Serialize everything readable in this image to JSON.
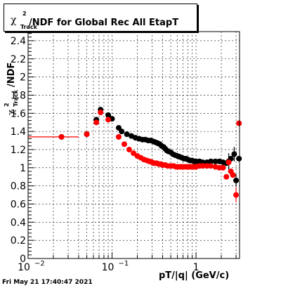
{
  "chart_data": {
    "type": "scatter",
    "title": "/NDF for Global Rec All EtapT",
    "title_prefix": "χ",
    "title_sup": "2",
    "title_sub": "Track",
    "xlabel": "pT/|q| (GeV/c)",
    "ylabel": "χ2Track/NDF",
    "xscale": "log",
    "xlim": [
      0.01,
      3.3
    ],
    "ylim": [
      0,
      2.5
    ],
    "yticks": [
      "0",
      "0.2",
      "0.4",
      "0.6",
      "0.8",
      "1",
      "1.2",
      "1.4",
      "1.6",
      "1.8",
      "2",
      "2.2",
      "2.4"
    ],
    "xticks": [
      {
        "value": 0.01,
        "base": "10",
        "exp": "−2"
      },
      {
        "value": 0.1,
        "base": "10",
        "exp": "−1"
      },
      {
        "value": 1,
        "base": "1",
        "exp": ""
      }
    ],
    "grid": true,
    "series": [
      {
        "color": "#000000",
        "points": [
          [
            0.025,
            1.34
          ],
          [
            0.05,
            1.37
          ],
          [
            0.065,
            1.53
          ],
          [
            0.073,
            1.64
          ],
          [
            0.09,
            1.58
          ],
          [
            0.1,
            1.54
          ],
          [
            0.12,
            1.44
          ],
          [
            0.13,
            1.4
          ],
          [
            0.15,
            1.37
          ],
          [
            0.17,
            1.35
          ],
          [
            0.19,
            1.33
          ],
          [
            0.21,
            1.32
          ],
          [
            0.23,
            1.31
          ],
          [
            0.25,
            1.31
          ],
          [
            0.27,
            1.3
          ],
          [
            0.29,
            1.3
          ],
          [
            0.31,
            1.29
          ],
          [
            0.33,
            1.28
          ],
          [
            0.35,
            1.27
          ],
          [
            0.37,
            1.26
          ],
          [
            0.39,
            1.24
          ],
          [
            0.41,
            1.23
          ],
          [
            0.43,
            1.21
          ],
          [
            0.45,
            1.19
          ],
          [
            0.47,
            1.18
          ],
          [
            0.5,
            1.17
          ],
          [
            0.53,
            1.15
          ],
          [
            0.56,
            1.14
          ],
          [
            0.6,
            1.13
          ],
          [
            0.64,
            1.12
          ],
          [
            0.68,
            1.11
          ],
          [
            0.72,
            1.1
          ],
          [
            0.76,
            1.1
          ],
          [
            0.8,
            1.09
          ],
          [
            0.85,
            1.08
          ],
          [
            0.9,
            1.08
          ],
          [
            0.95,
            1.07
          ],
          [
            1.0,
            1.07
          ],
          [
            1.1,
            1.07
          ],
          [
            1.2,
            1.06
          ],
          [
            1.35,
            1.06
          ],
          [
            1.5,
            1.07
          ],
          [
            1.7,
            1.07
          ],
          [
            1.9,
            1.07
          ],
          [
            2.1,
            1.06
          ],
          [
            2.3,
            1.05
          ],
          [
            2.45,
            1.07
          ],
          [
            2.6,
            1.1
          ],
          [
            2.85,
            1.15
          ],
          [
            3.0,
            0.86
          ],
          [
            3.25,
            1.1
          ]
        ]
      },
      {
        "color": "#ff0000",
        "points": [
          [
            0.025,
            1.34
          ],
          [
            0.05,
            1.37
          ],
          [
            0.065,
            1.5
          ],
          [
            0.073,
            1.61
          ],
          [
            0.09,
            1.53
          ],
          [
            0.12,
            1.34
          ],
          [
            0.14,
            1.26
          ],
          [
            0.16,
            1.2
          ],
          [
            0.18,
            1.16
          ],
          [
            0.2,
            1.13
          ],
          [
            0.22,
            1.11
          ],
          [
            0.24,
            1.09
          ],
          [
            0.26,
            1.08
          ],
          [
            0.28,
            1.07
          ],
          [
            0.3,
            1.06
          ],
          [
            0.32,
            1.05
          ],
          [
            0.34,
            1.05
          ],
          [
            0.36,
            1.04
          ],
          [
            0.38,
            1.04
          ],
          [
            0.4,
            1.03
          ],
          [
            0.43,
            1.03
          ],
          [
            0.46,
            1.02
          ],
          [
            0.5,
            1.02
          ],
          [
            0.54,
            1.02
          ],
          [
            0.58,
            1.01
          ],
          [
            0.62,
            1.01
          ],
          [
            0.66,
            1.01
          ],
          [
            0.7,
            1.01
          ],
          [
            0.75,
            1.01
          ],
          [
            0.8,
            1.01
          ],
          [
            0.85,
            1.01
          ],
          [
            0.9,
            1.01
          ],
          [
            0.95,
            1.01
          ],
          [
            1.0,
            1.01
          ],
          [
            1.1,
            1.02
          ],
          [
            1.2,
            1.02
          ],
          [
            1.35,
            1.02
          ],
          [
            1.5,
            1.02
          ],
          [
            1.7,
            1.01
          ],
          [
            1.9,
            1.0
          ],
          [
            2.1,
            1.0
          ],
          [
            2.3,
            0.9
          ],
          [
            2.45,
            1.06
          ],
          [
            2.6,
            0.96
          ],
          [
            2.75,
            0.92
          ],
          [
            3.0,
            0.7
          ],
          [
            3.25,
            1.49
          ]
        ]
      }
    ],
    "error_bars": [
      {
        "series": 1,
        "x": 0.025,
        "y": 1.34,
        "xlo": 0.01,
        "xhi": 0.04
      },
      {
        "series": 0,
        "x": 2.45,
        "y": 1.07,
        "ylo": 0.98,
        "yhi": 1.16
      },
      {
        "series": 0,
        "x": 2.85,
        "y": 1.15,
        "ylo": 1.07,
        "yhi": 1.23
      },
      {
        "series": 0,
        "x": 3.0,
        "y": 0.86,
        "ylo": 0.8,
        "yhi": 0.93
      },
      {
        "series": 1,
        "x": 3.0,
        "y": 0.7,
        "ylo": 0.62,
        "yhi": 0.78
      }
    ]
  },
  "footer": "Fri May 21 17:40:47 2021"
}
